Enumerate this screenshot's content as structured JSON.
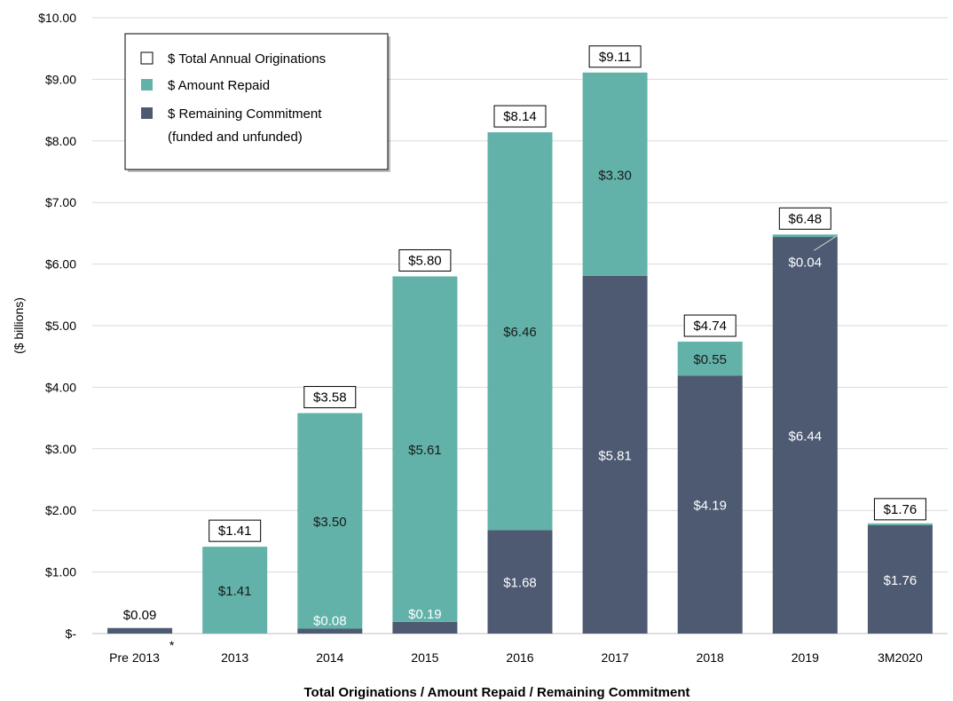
{
  "chart_data": {
    "type": "bar",
    "stacked": true,
    "title": "",
    "xlabel": "Total Originations / Amount Repaid / Remaining Commitment",
    "ylabel": "($ billions)",
    "ylim": [
      0,
      10
    ],
    "yticks": [
      {
        "value": 0,
        "label": "$-"
      },
      {
        "value": 1,
        "label": "$1.00"
      },
      {
        "value": 2,
        "label": "$2.00"
      },
      {
        "value": 3,
        "label": "$3.00"
      },
      {
        "value": 4,
        "label": "$4.00"
      },
      {
        "value": 5,
        "label": "$5.00"
      },
      {
        "value": 6,
        "label": "$6.00"
      },
      {
        "value": 7,
        "label": "$7.00"
      },
      {
        "value": 8,
        "label": "$8.00"
      },
      {
        "value": 9,
        "label": "$9.00"
      },
      {
        "value": 10,
        "label": "$10.00"
      }
    ],
    "grid": "horizontal",
    "legend_position": "top-left",
    "categories": [
      "Pre 2013",
      "2013",
      "2014",
      "2015",
      "2016",
      "2017",
      "2018",
      "2019",
      "3M2020"
    ],
    "footnote_mark": "*",
    "legend": [
      {
        "label": "$ Total Annual Originations",
        "marker": "hollow"
      },
      {
        "label": "$ Amount Repaid",
        "marker": "#62b2a9"
      },
      {
        "label": "$ Remaining Commitment",
        "label_line2": "(funded and unfunded)",
        "marker": "#4d5a72"
      }
    ],
    "series": [
      {
        "name": "$ Remaining Commitment (funded and unfunded)",
        "color": "#4d5a72",
        "values": [
          0.09,
          0,
          0.08,
          0.19,
          1.68,
          5.81,
          4.19,
          6.44,
          1.76
        ],
        "labels": [
          "",
          "",
          "$0.08",
          "$0.19",
          "$1.68",
          "$5.81",
          "$4.19",
          "$6.44",
          "$1.76"
        ]
      },
      {
        "name": "$ Amount Repaid",
        "color": "#62b2a9",
        "values": [
          0,
          1.41,
          3.5,
          5.61,
          6.46,
          3.3,
          0.55,
          0.04,
          0
        ],
        "labels": [
          "",
          "$1.41",
          "$3.50",
          "$5.61",
          "$6.46",
          "$3.30",
          "$0.55",
          "$0.04",
          ""
        ]
      }
    ],
    "totals": {
      "name": "$ Total Annual Originations",
      "values": [
        0.09,
        1.41,
        3.58,
        5.8,
        8.14,
        9.11,
        4.74,
        6.48,
        1.76
      ],
      "labels": [
        "$0.09",
        "$1.41",
        "$3.58",
        "$5.80",
        "$8.14",
        "$9.11",
        "$4.74",
        "$6.48",
        "$1.76"
      ]
    }
  }
}
